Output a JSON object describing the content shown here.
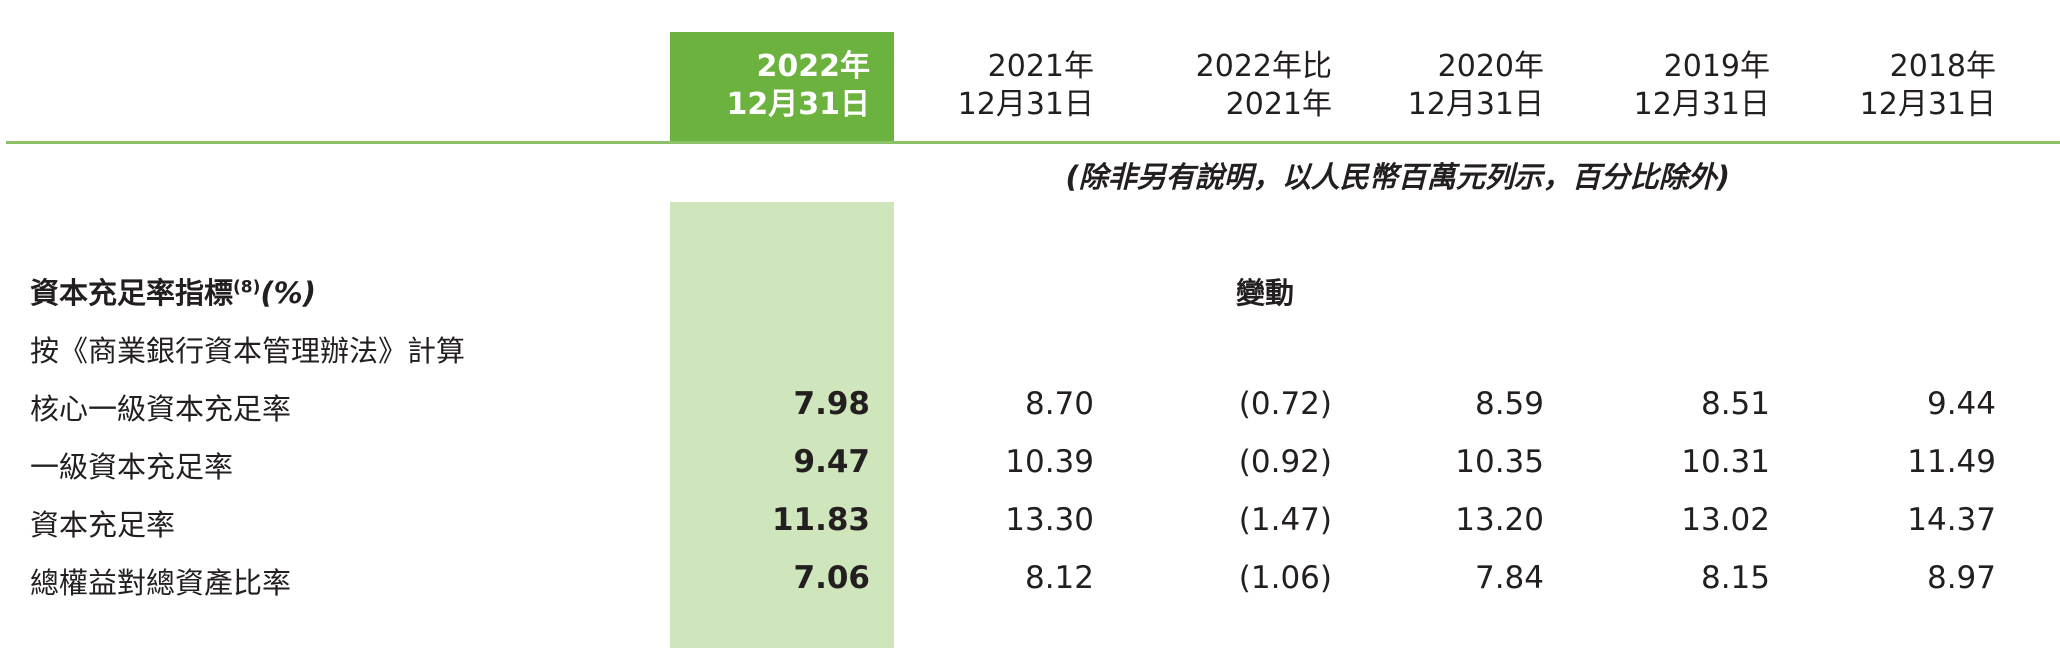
{
  "headers": [
    {
      "line1": "2022年",
      "line2": "12月31日"
    },
    {
      "line1": "2021年",
      "line2": "12月31日"
    },
    {
      "line1": "2022年比",
      "line2": "2021年"
    },
    {
      "line1": "2020年",
      "line2": "12月31日"
    },
    {
      "line1": "2019年",
      "line2": "12月31日"
    },
    {
      "line1": "2018年",
      "line2": "12月31日"
    }
  ],
  "note": "(除非另有說明，以人民幣百萬元列示，百分比除外)",
  "section": {
    "title": "資本充足率指標",
    "footnote": "(8)",
    "unit": "(%)"
  },
  "change_label": "變動",
  "subtitle": "按《商業銀行資本管理辦法》計算",
  "rows": [
    {
      "label": "核心一級資本充足率",
      "values": [
        "7.98",
        "8.70",
        "(0.72)",
        "8.59",
        "8.51",
        "9.44"
      ]
    },
    {
      "label": "一級資本充足率",
      "values": [
        "9.47",
        "10.39",
        "(0.92)",
        "10.35",
        "10.31",
        "11.49"
      ]
    },
    {
      "label": "資本充足率",
      "values": [
        "11.83",
        "13.30",
        "(1.47)",
        "13.20",
        "13.02",
        "14.37"
      ]
    },
    {
      "label": "總權益對總資產比率",
      "values": [
        "7.06",
        "8.12",
        "(1.06)",
        "7.84",
        "8.15",
        "8.97"
      ]
    }
  ],
  "colors": {
    "highlight": "#6cb23f",
    "highlight_light": "#cfe6bc",
    "rule": "#8cc16a"
  }
}
